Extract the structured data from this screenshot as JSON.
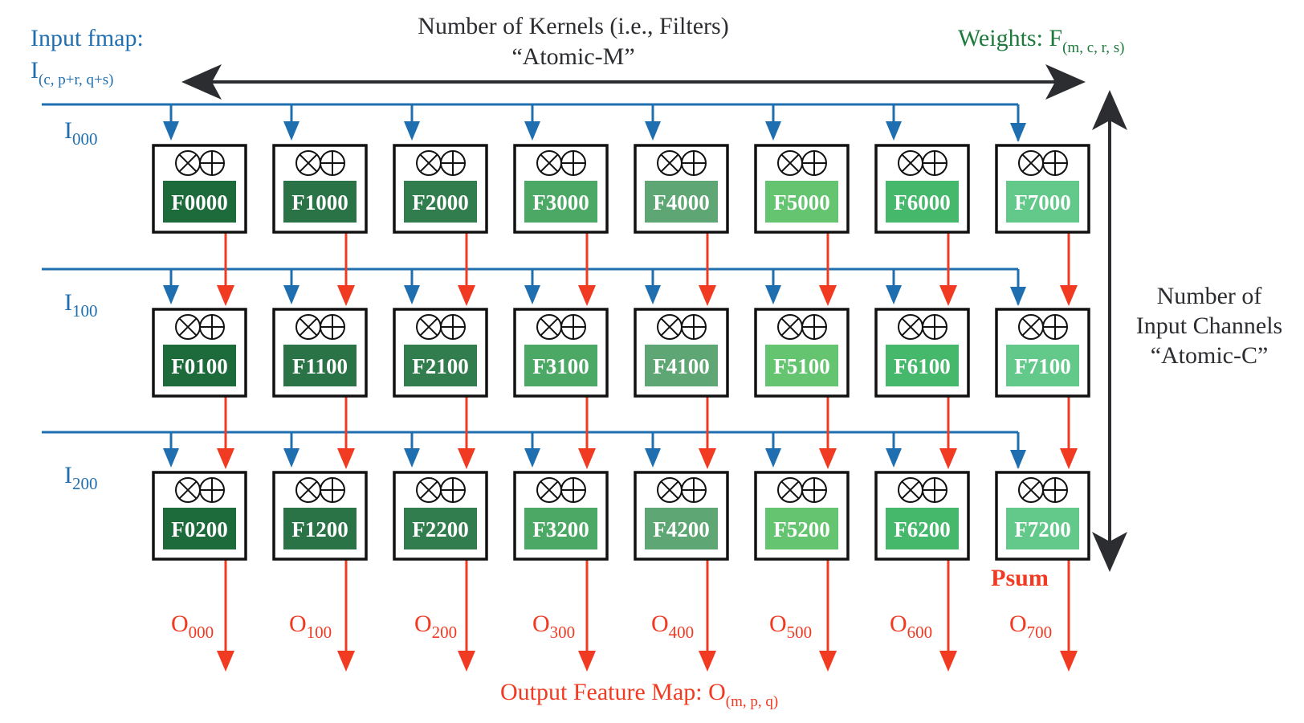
{
  "colors": {
    "input": "#1f6fb0",
    "output": "#f03a22",
    "weights": "#1e7a3c",
    "dark": "#2b2d31",
    "pe_fills": [
      "#1d6b3b",
      "#2a7346",
      "#327d4e",
      "#4ca865",
      "#5ea774",
      "#64c46f",
      "#45b86c",
      "#62c98a"
    ]
  },
  "labels": {
    "kernels_line1": "Number of Kernels (i.e., Filters)",
    "kernels_line2": "“Atomic-M”",
    "input_fmap_title": "Input fmap:",
    "input_fmap_main": "I",
    "input_fmap_sub": "(c, p+r, q+s)",
    "weights_main": "Weights: F",
    "weights_sub": "(m, c, r, s)",
    "channels_line1": "Number of",
    "channels_line2": "Input Channels",
    "channels_line3": "“Atomic-C”",
    "psum": "Psum",
    "output_main": "Output Feature Map: O",
    "output_sub": "(m, p, q)"
  },
  "pe_symbols": [
    "⊗",
    "⊕"
  ],
  "rows": [
    {
      "input_main": "I",
      "input_sub": "000",
      "cells": [
        "F0000",
        "F1000",
        "F2000",
        "F3000",
        "F4000",
        "F5000",
        "F6000",
        "F7000"
      ]
    },
    {
      "input_main": "I",
      "input_sub": "100",
      "cells": [
        "F0100",
        "F1100",
        "F2100",
        "F3100",
        "F4100",
        "F5100",
        "F6100",
        "F7100"
      ]
    },
    {
      "input_main": "I",
      "input_sub": "200",
      "cells": [
        "F0200",
        "F1200",
        "F2200",
        "F3200",
        "F4200",
        "F5200",
        "F6200",
        "F7200"
      ]
    }
  ],
  "outputs": [
    {
      "main": "O",
      "sub": "000"
    },
    {
      "main": "O",
      "sub": "100"
    },
    {
      "main": "O",
      "sub": "200"
    },
    {
      "main": "O",
      "sub": "300"
    },
    {
      "main": "O",
      "sub": "400"
    },
    {
      "main": "O",
      "sub": "500"
    },
    {
      "main": "O",
      "sub": "600"
    },
    {
      "main": "O",
      "sub": "700"
    }
  ]
}
